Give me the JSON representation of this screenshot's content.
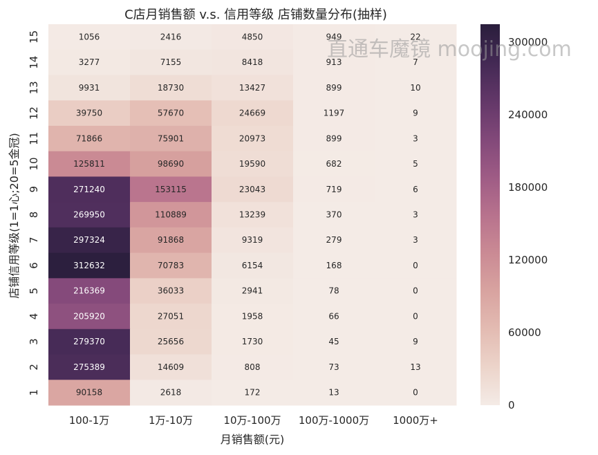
{
  "chart_data": {
    "type": "heatmap",
    "title": "C店月销售额 v.s. 信用等级 店铺数量分布(抽样)",
    "xlabel": "月销售额(元)",
    "ylabel": "店铺信用等级(1=1心;20=5金冠)",
    "x_categories": [
      "100-1万",
      "1万-10万",
      "10万-100万",
      "100万-1000万",
      "1000万+"
    ],
    "y_categories": [
      "15",
      "14",
      "13",
      "12",
      "11",
      "10",
      "9",
      "8",
      "7",
      "6",
      "5",
      "4",
      "3",
      "2",
      "1"
    ],
    "values": [
      [
        1056,
        2416,
        4850,
        949,
        22
      ],
      [
        3277,
        7155,
        8418,
        913,
        7
      ],
      [
        9931,
        18730,
        13427,
        899,
        10
      ],
      [
        39750,
        57670,
        24669,
        1197,
        9
      ],
      [
        71866,
        75901,
        20973,
        899,
        3
      ],
      [
        125811,
        98690,
        19590,
        682,
        5
      ],
      [
        271240,
        153115,
        23043,
        719,
        6
      ],
      [
        269950,
        110889,
        13239,
        370,
        3
      ],
      [
        297324,
        91868,
        9319,
        279,
        3
      ],
      [
        312632,
        70783,
        6154,
        168,
        0
      ],
      [
        216369,
        36033,
        2941,
        78,
        0
      ],
      [
        205920,
        27051,
        1958,
        66,
        0
      ],
      [
        279370,
        25656,
        1730,
        45,
        9
      ],
      [
        275389,
        14609,
        808,
        73,
        13
      ],
      [
        90158,
        2618,
        172,
        13,
        0
      ]
    ],
    "colorbar": {
      "min": 0,
      "max": 315000,
      "ticks": [
        "0",
        "60000",
        "120000",
        "180000",
        "240000",
        "300000"
      ],
      "tick_values": [
        0,
        60000,
        120000,
        180000,
        240000,
        300000
      ]
    },
    "color_low": "#f4ebe6",
    "color_high": "#2a1e3c",
    "legend": "right"
  },
  "watermark": "直通车魔镜 moojing.com"
}
